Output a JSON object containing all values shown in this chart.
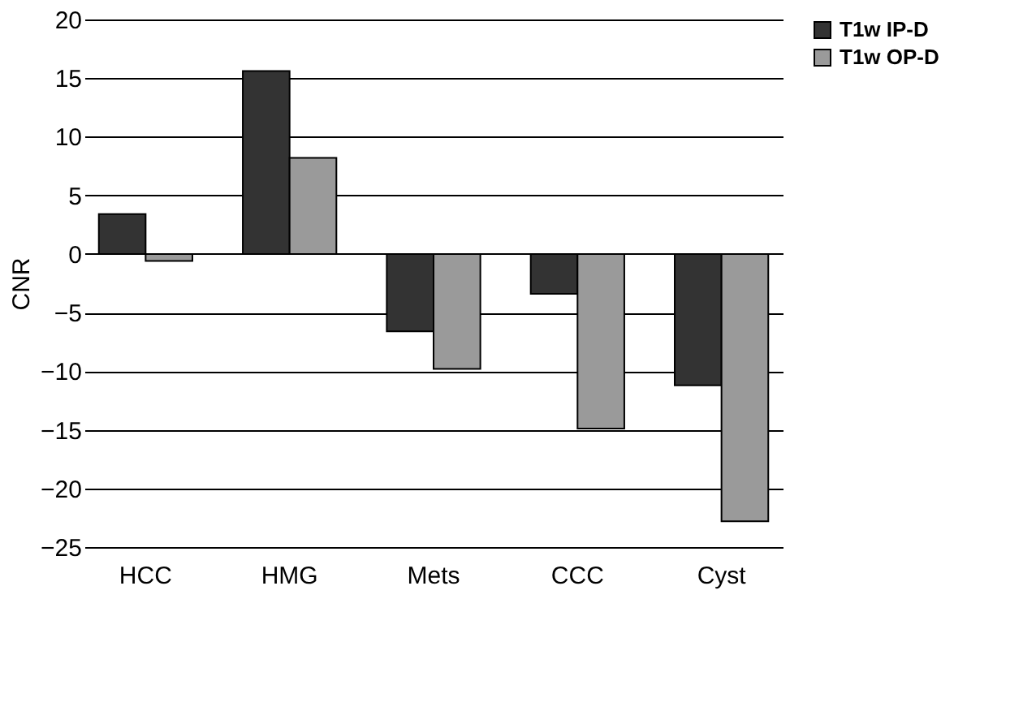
{
  "chart_data": {
    "type": "bar",
    "ylabel": "CNR",
    "categories": [
      "HCC",
      "HMG",
      "Mets",
      "CCC",
      "Cyst"
    ],
    "series": [
      {
        "name": "T1w IP-D",
        "color": "#333333",
        "values": [
          3.4,
          15.6,
          -6.6,
          -3.4,
          -11.2
        ]
      },
      {
        "name": "T1w OP-D",
        "color": "#9a9a9a",
        "values": [
          -0.6,
          8.2,
          -9.8,
          -14.9,
          -22.8
        ]
      }
    ],
    "ylim": [
      -25,
      20
    ],
    "yticks": [
      -25,
      -20,
      -15,
      -10,
      -5,
      0,
      5,
      10,
      15,
      20
    ],
    "grid": "y",
    "legend": "right"
  }
}
